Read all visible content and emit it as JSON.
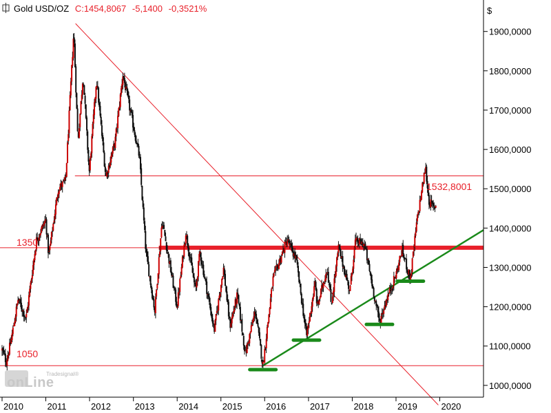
{
  "header": {
    "instrument": "Gold USD/OZ",
    "close_text": "C:1454,8067",
    "change_text": "-5,1400",
    "change_pct_text": "-0,3521%"
  },
  "currency_symbol": "$",
  "watermark": {
    "line1": "Tradesignal®",
    "line2": "onLine"
  },
  "colors": {
    "red": "#e8202a",
    "green": "#1a8a1a",
    "candle_up": "#cc0000",
    "candle_down": "#111111"
  },
  "chart_data": {
    "type": "candlestick",
    "title": "Gold USD/OZ",
    "x_range": [
      "2010-01-01",
      "2020-12-31"
    ],
    "x_tick_labels": [
      "2010",
      "2011",
      "2012",
      "2013",
      "2014",
      "2015",
      "2016",
      "2017",
      "2018",
      "2019",
      "2020"
    ],
    "y_range": [
      970,
      1980
    ],
    "y_tick_values": [
      1000,
      1100,
      1200,
      1300,
      1400,
      1500,
      1600,
      1700,
      1800,
      1900
    ],
    "y_tick_labels": [
      "1000,0000",
      "1100,0000",
      "1200,0000",
      "1300,0000",
      "1400,0000",
      "1500,0000",
      "1600,0000",
      "1700,0000",
      "1800,0000",
      "1900,0000"
    ],
    "grid": false,
    "price_path": [
      [
        "2010-01-01",
        1090
      ],
      [
        "2010-02-05",
        1060
      ],
      [
        "2010-03-15",
        1110
      ],
      [
        "2010-05-15",
        1220
      ],
      [
        "2010-07-20",
        1170
      ],
      [
        "2010-10-15",
        1370
      ],
      [
        "2010-12-31",
        1420
      ],
      [
        "2011-01-25",
        1330
      ],
      [
        "2011-04-15",
        1500
      ],
      [
        "2011-06-15",
        1520
      ],
      [
        "2011-08-22",
        1900
      ],
      [
        "2011-09-26",
        1620
      ],
      [
        "2011-11-08",
        1790
      ],
      [
        "2011-12-29",
        1540
      ],
      [
        "2012-02-28",
        1780
      ],
      [
        "2012-05-16",
        1530
      ],
      [
        "2012-08-01",
        1620
      ],
      [
        "2012-10-05",
        1790
      ],
      [
        "2012-12-31",
        1660
      ],
      [
        "2013-02-20",
        1580
      ],
      [
        "2013-04-15",
        1340
      ],
      [
        "2013-06-28",
        1190
      ],
      [
        "2013-08-28",
        1420
      ],
      [
        "2013-12-31",
        1200
      ],
      [
        "2014-03-14",
        1390
      ],
      [
        "2014-06-03",
        1240
      ],
      [
        "2014-07-10",
        1340
      ],
      [
        "2014-11-06",
        1140
      ],
      [
        "2015-01-22",
        1300
      ],
      [
        "2015-03-17",
        1150
      ],
      [
        "2015-05-18",
        1230
      ],
      [
        "2015-07-24",
        1080
      ],
      [
        "2015-10-15",
        1190
      ],
      [
        "2015-12-17",
        1050
      ],
      [
        "2016-03-10",
        1270
      ],
      [
        "2016-07-06",
        1370
      ],
      [
        "2016-09-20",
        1320
      ],
      [
        "2016-12-15",
        1125
      ],
      [
        "2017-02-25",
        1260
      ],
      [
        "2017-03-15",
        1200
      ],
      [
        "2017-06-06",
        1300
      ],
      [
        "2017-07-10",
        1205
      ],
      [
        "2017-09-08",
        1350
      ],
      [
        "2017-12-12",
        1240
      ],
      [
        "2018-01-25",
        1365
      ],
      [
        "2018-04-11",
        1360
      ],
      [
        "2018-08-16",
        1160
      ],
      [
        "2018-10-15",
        1220
      ],
      [
        "2018-12-31",
        1280
      ],
      [
        "2019-02-20",
        1345
      ],
      [
        "2019-05-01",
        1270
      ],
      [
        "2019-06-25",
        1420
      ],
      [
        "2019-09-04",
        1555
      ],
      [
        "2019-10-01",
        1470
      ],
      [
        "2019-11-12",
        1450
      ],
      [
        "2019-12-01",
        1460
      ]
    ],
    "annotations": {
      "resistance_thick": {
        "value": 1350,
        "from": "2013-08-01",
        "to": "2020-12-31"
      },
      "support_line_1350": {
        "value": 1350,
        "label": "1350"
      },
      "support_line_1050": {
        "value": 1050,
        "label": "1050"
      },
      "level_line": {
        "value": 1532.8001,
        "label": "1532,8001",
        "from": "2011-09-01"
      },
      "downtrend_line": {
        "from": [
          "2011-09-06",
          1920
        ],
        "to": [
          "2019-12-20",
          950
        ]
      },
      "uptrend_line": {
        "from": [
          "2015-12-17",
          1050
        ],
        "to": [
          "2020-12-31",
          1395
        ]
      },
      "green_markers": [
        {
          "date": "2015-12-17",
          "value": 1040
        },
        {
          "date": "2016-12-15",
          "value": 1115
        },
        {
          "date": "2018-08-16",
          "value": 1155
        },
        {
          "date": "2019-05-01",
          "value": 1265
        }
      ]
    }
  }
}
